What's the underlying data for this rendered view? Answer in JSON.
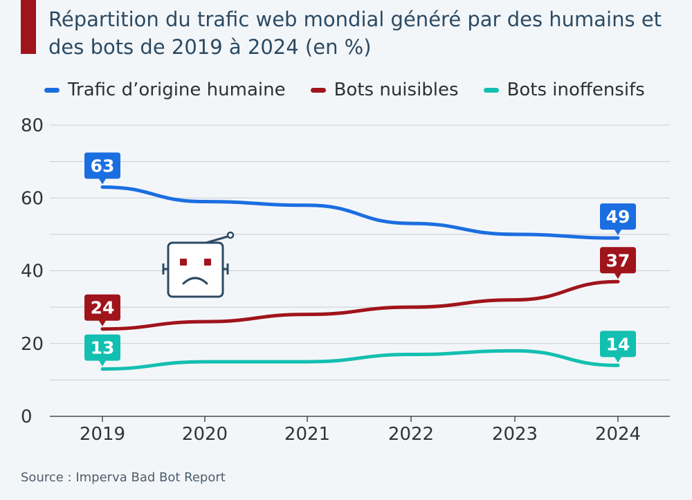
{
  "header": {
    "title": "Répartition du trafic web mondial généré par des humains et des bots de 2019 à 2024 (en %)"
  },
  "colors": {
    "background": "#f3f6f9",
    "title_bar": "#a0141c",
    "grid": "#c7cdd3",
    "axis": "#4a4a4a"
  },
  "robot": {
    "icon": "sad-robot-icon"
  },
  "chart_data": {
    "type": "line",
    "title": "Répartition du trafic web mondial généré par des humains et des bots de 2019 à 2024 (en %)",
    "xlabel": "",
    "ylabel": "",
    "categories": [
      "2019",
      "2020",
      "2021",
      "2022",
      "2023",
      "2024"
    ],
    "ylim": [
      0,
      80
    ],
    "yticks": [
      0,
      20,
      40,
      60,
      80
    ],
    "grid": true,
    "legend_position": "top",
    "series": [
      {
        "name": "Trafic d’origine humaine",
        "color": "#1b6ee0",
        "values": [
          63,
          59,
          58,
          53,
          50,
          49
        ],
        "labels": [
          {
            "index": 0,
            "text": "63"
          },
          {
            "index": 5,
            "text": "49"
          }
        ]
      },
      {
        "name": "Bots nuisibles",
        "color": "#a0141c",
        "values": [
          24,
          26,
          28,
          30,
          32,
          37
        ],
        "labels": [
          {
            "index": 0,
            "text": "24"
          },
          {
            "index": 5,
            "text": "37"
          }
        ]
      },
      {
        "name": "Bots inoffensifs",
        "color": "#13bfb0",
        "values": [
          13,
          15,
          15,
          17,
          18,
          14
        ],
        "labels": [
          {
            "index": 0,
            "text": "13"
          },
          {
            "index": 5,
            "text": "14"
          }
        ]
      }
    ]
  },
  "footer": {
    "source": "Source : Imperva Bad Bot Report"
  }
}
